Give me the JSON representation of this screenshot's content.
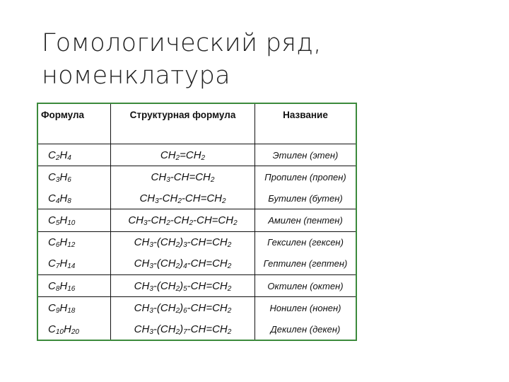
{
  "title": "Гомологический ряд, номенклатура",
  "table": {
    "headers": [
      "Формула",
      "Структурная формула",
      "Название"
    ],
    "rows": [
      {
        "formula": "C2H4",
        "structure": "CH2=CH2",
        "name": "Этилен (этен)"
      },
      {
        "formula": "C3H6",
        "structure": "CH3-CH=CH2",
        "name": "Пропилен (пропен)"
      },
      {
        "formula": "C4H8",
        "structure": "CH3-CH2-CH=CH2",
        "name": "Бутилен (бутен)"
      },
      {
        "formula": "C5H10",
        "structure": "CH3-CH2-CH2-CH=CH2",
        "name": "Амилен (пентен)"
      },
      {
        "formula": "C6H12",
        "structure": "CH3-(CH2)3-CH=CH2",
        "name": "Гексилен (гексен)"
      },
      {
        "formula": "C7H14",
        "structure": "CH3-(CH2)4-CH=CH2",
        "name": "Гептилен (гептен)"
      },
      {
        "formula": "C8H16",
        "structure": "CH3-(CH2)5-CH=CH2",
        "name": "Октилен (октен)"
      },
      {
        "formula": "C9H18",
        "structure": "CH3-(CH2)6-CH=CH2",
        "name": "Нонилен (нонен)"
      },
      {
        "formula": "C10H20",
        "structure": "CH3-(CH2)7-CH=CH2",
        "name": "Декилен (декен)"
      }
    ],
    "border_color": "#3c8a3c"
  }
}
